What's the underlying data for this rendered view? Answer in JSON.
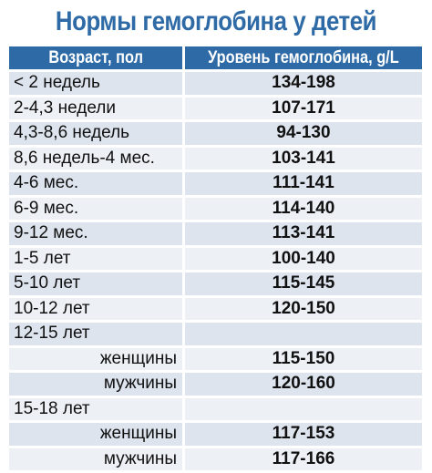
{
  "title": "Нормы гемоглобина у детей",
  "table": {
    "headers": {
      "age": "Возраст, пол",
      "level": "Уровень гемоглобина, g/L"
    },
    "rows": [
      {
        "age": "< 2 недель",
        "value": "134-198",
        "sub": false
      },
      {
        "age": "2-4,3 недели",
        "value": "107-171",
        "sub": false
      },
      {
        "age": "4,3-8,6 недель",
        "value": "94-130",
        "sub": false
      },
      {
        "age": "8,6 недель-4 мес.",
        "value": "103-141",
        "sub": false
      },
      {
        "age": "4-6 мес.",
        "value": "111-141",
        "sub": false
      },
      {
        "age": "6-9 мес.",
        "value": "114-140",
        "sub": false
      },
      {
        "age": "9-12 мес.",
        "value": "113-141",
        "sub": false
      },
      {
        "age": "1-5 лет",
        "value": "100-140",
        "sub": false
      },
      {
        "age": "5-10 лет",
        "value": "115-145",
        "sub": false
      },
      {
        "age": "10-12 лет",
        "value": "120-150",
        "sub": false
      },
      {
        "age": "12-15 лет",
        "value": "",
        "sub": false
      },
      {
        "age": "женщины",
        "value": "115-150",
        "sub": true
      },
      {
        "age": "мужчины",
        "value": "120-160",
        "sub": true
      },
      {
        "age": "15-18 лет",
        "value": "",
        "sub": false
      },
      {
        "age": "женщины",
        "value": "117-153",
        "sub": true
      },
      {
        "age": "мужчины",
        "value": "117-166",
        "sub": true
      }
    ]
  }
}
